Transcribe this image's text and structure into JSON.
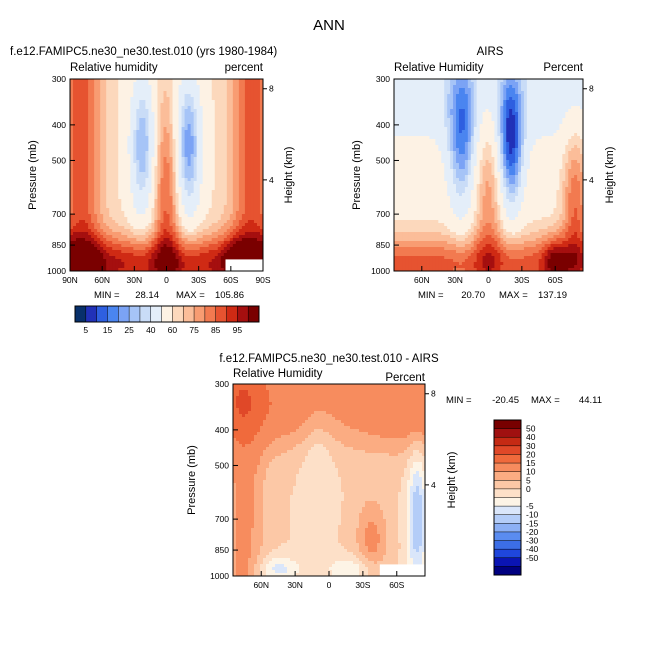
{
  "figure": {
    "title": "ANN"
  },
  "palettes": {
    "rh": [
      "#08306b",
      "#2131b8",
      "#2e5fe0",
      "#4a85f0",
      "#7ba3f5",
      "#a6c4f7",
      "#c9dcf7",
      "#e4eef9",
      "#fdf2e4",
      "#fcd8bc",
      "#fbbd99",
      "#f89c72",
      "#f27a50",
      "#e65330",
      "#cf2a14",
      "#a50f0f",
      "#7a0000"
    ],
    "diff": [
      "#000080",
      "#0a14b4",
      "#1f46dc",
      "#3c6ee6",
      "#5a8cf0",
      "#8cb0f5",
      "#b4cdf8",
      "#dae6fa",
      "#fdf4e6",
      "#fde0c8",
      "#fcc8a6",
      "#fbac82",
      "#f78c5e",
      "#f06a3c",
      "#e04828",
      "#c52a14",
      "#a01010",
      "#780000"
    ]
  },
  "chart_data": [
    {
      "type": "heatmap",
      "subtitle": "f.e12.FAMIPC5.ne30_ne30.test.010 (yrs 1980-1984)",
      "left_label": "Relative humidity",
      "right_label": "percent",
      "xlabel": "",
      "ylabel": "Pressure (mb)",
      "y2label": "Height (km)",
      "x_ticks": [
        "90N",
        "60N",
        "30N",
        "0",
        "30S",
        "60S",
        "90S"
      ],
      "x_tick_values": [
        90,
        60,
        30,
        0,
        -30,
        -60,
        -90
      ],
      "xlim": [
        90,
        -90
      ],
      "y_ticks": [
        "300",
        "400",
        "500",
        "700",
        "850",
        "1000"
      ],
      "y_tick_values": [
        300,
        400,
        500,
        700,
        850,
        1000
      ],
      "ylim": [
        300,
        1000
      ],
      "y_scale": "log",
      "y2_ticks": [
        "8",
        "4"
      ],
      "y2_tick_values": [
        8,
        4
      ],
      "min_label": "MIN =",
      "min_value": "28.14",
      "max_label": "MAX =",
      "max_value": "105.86",
      "mask_lat_from": -55,
      "mask_p_from": 930,
      "colorbar_labels": [
        "5",
        "15",
        "25",
        "40",
        "60",
        "75",
        "85",
        "95"
      ],
      "colorbar_label_bounds": [
        1,
        3,
        5,
        7,
        9,
        11,
        13,
        15
      ]
    },
    {
      "type": "heatmap",
      "subtitle": "AIRS",
      "left_label": "Relative Humidity",
      "right_label": "Percent",
      "xlabel": "",
      "ylabel": "Pressure (mb)",
      "y2label": "Height (km)",
      "x_ticks": [
        "60N",
        "30N",
        "0",
        "30S",
        "60S"
      ],
      "x_tick_values": [
        60,
        30,
        0,
        -30,
        -60
      ],
      "xlim": [
        85,
        -85
      ],
      "y_ticks": [
        "300",
        "400",
        "500",
        "700",
        "850",
        "1000"
      ],
      "y_tick_values": [
        300,
        400,
        500,
        700,
        850,
        1000
      ],
      "ylim": [
        300,
        1000
      ],
      "y_scale": "log",
      "y2_ticks": [
        "8",
        "4"
      ],
      "y2_tick_values": [
        8,
        4
      ],
      "min_label": "MIN =",
      "min_value": "20.70",
      "max_label": "MAX =",
      "max_value": "137.19"
    },
    {
      "type": "heatmap",
      "subtitle": "f.e12.FAMIPC5.ne30_ne30.test.010 - AIRS",
      "left_label": "Relative Humidity",
      "right_label": "Percent",
      "xlabel": "",
      "ylabel": "Pressure (mb)",
      "y2label": "Height (km)",
      "x_ticks": [
        "60N",
        "30N",
        "0",
        "30S",
        "60S"
      ],
      "x_tick_values": [
        60,
        30,
        0,
        -30,
        -60
      ],
      "xlim": [
        85,
        -85
      ],
      "y_ticks": [
        "300",
        "400",
        "500",
        "700",
        "850",
        "1000"
      ],
      "y_tick_values": [
        300,
        400,
        500,
        700,
        850,
        1000
      ],
      "ylim": [
        300,
        1000
      ],
      "y_scale": "log",
      "y2_ticks": [
        "8",
        "4"
      ],
      "y2_tick_values": [
        8,
        4
      ],
      "min_label": "MIN =",
      "min_value": "-20.45",
      "max_label": "MAX =",
      "max_value": "44.11",
      "mask_lat_from": -45,
      "mask_p_from": 930,
      "colorbar_labels": [
        "50",
        "40",
        "30",
        "20",
        "15",
        "10",
        "5",
        "0",
        "-5",
        "-10",
        "-15",
        "-20",
        "-30",
        "-40",
        "-50"
      ],
      "colorbar_label_bounds": [
        17,
        16,
        15,
        14,
        13,
        12,
        11,
        10,
        8,
        7,
        6,
        5,
        4,
        3,
        2
      ]
    }
  ]
}
